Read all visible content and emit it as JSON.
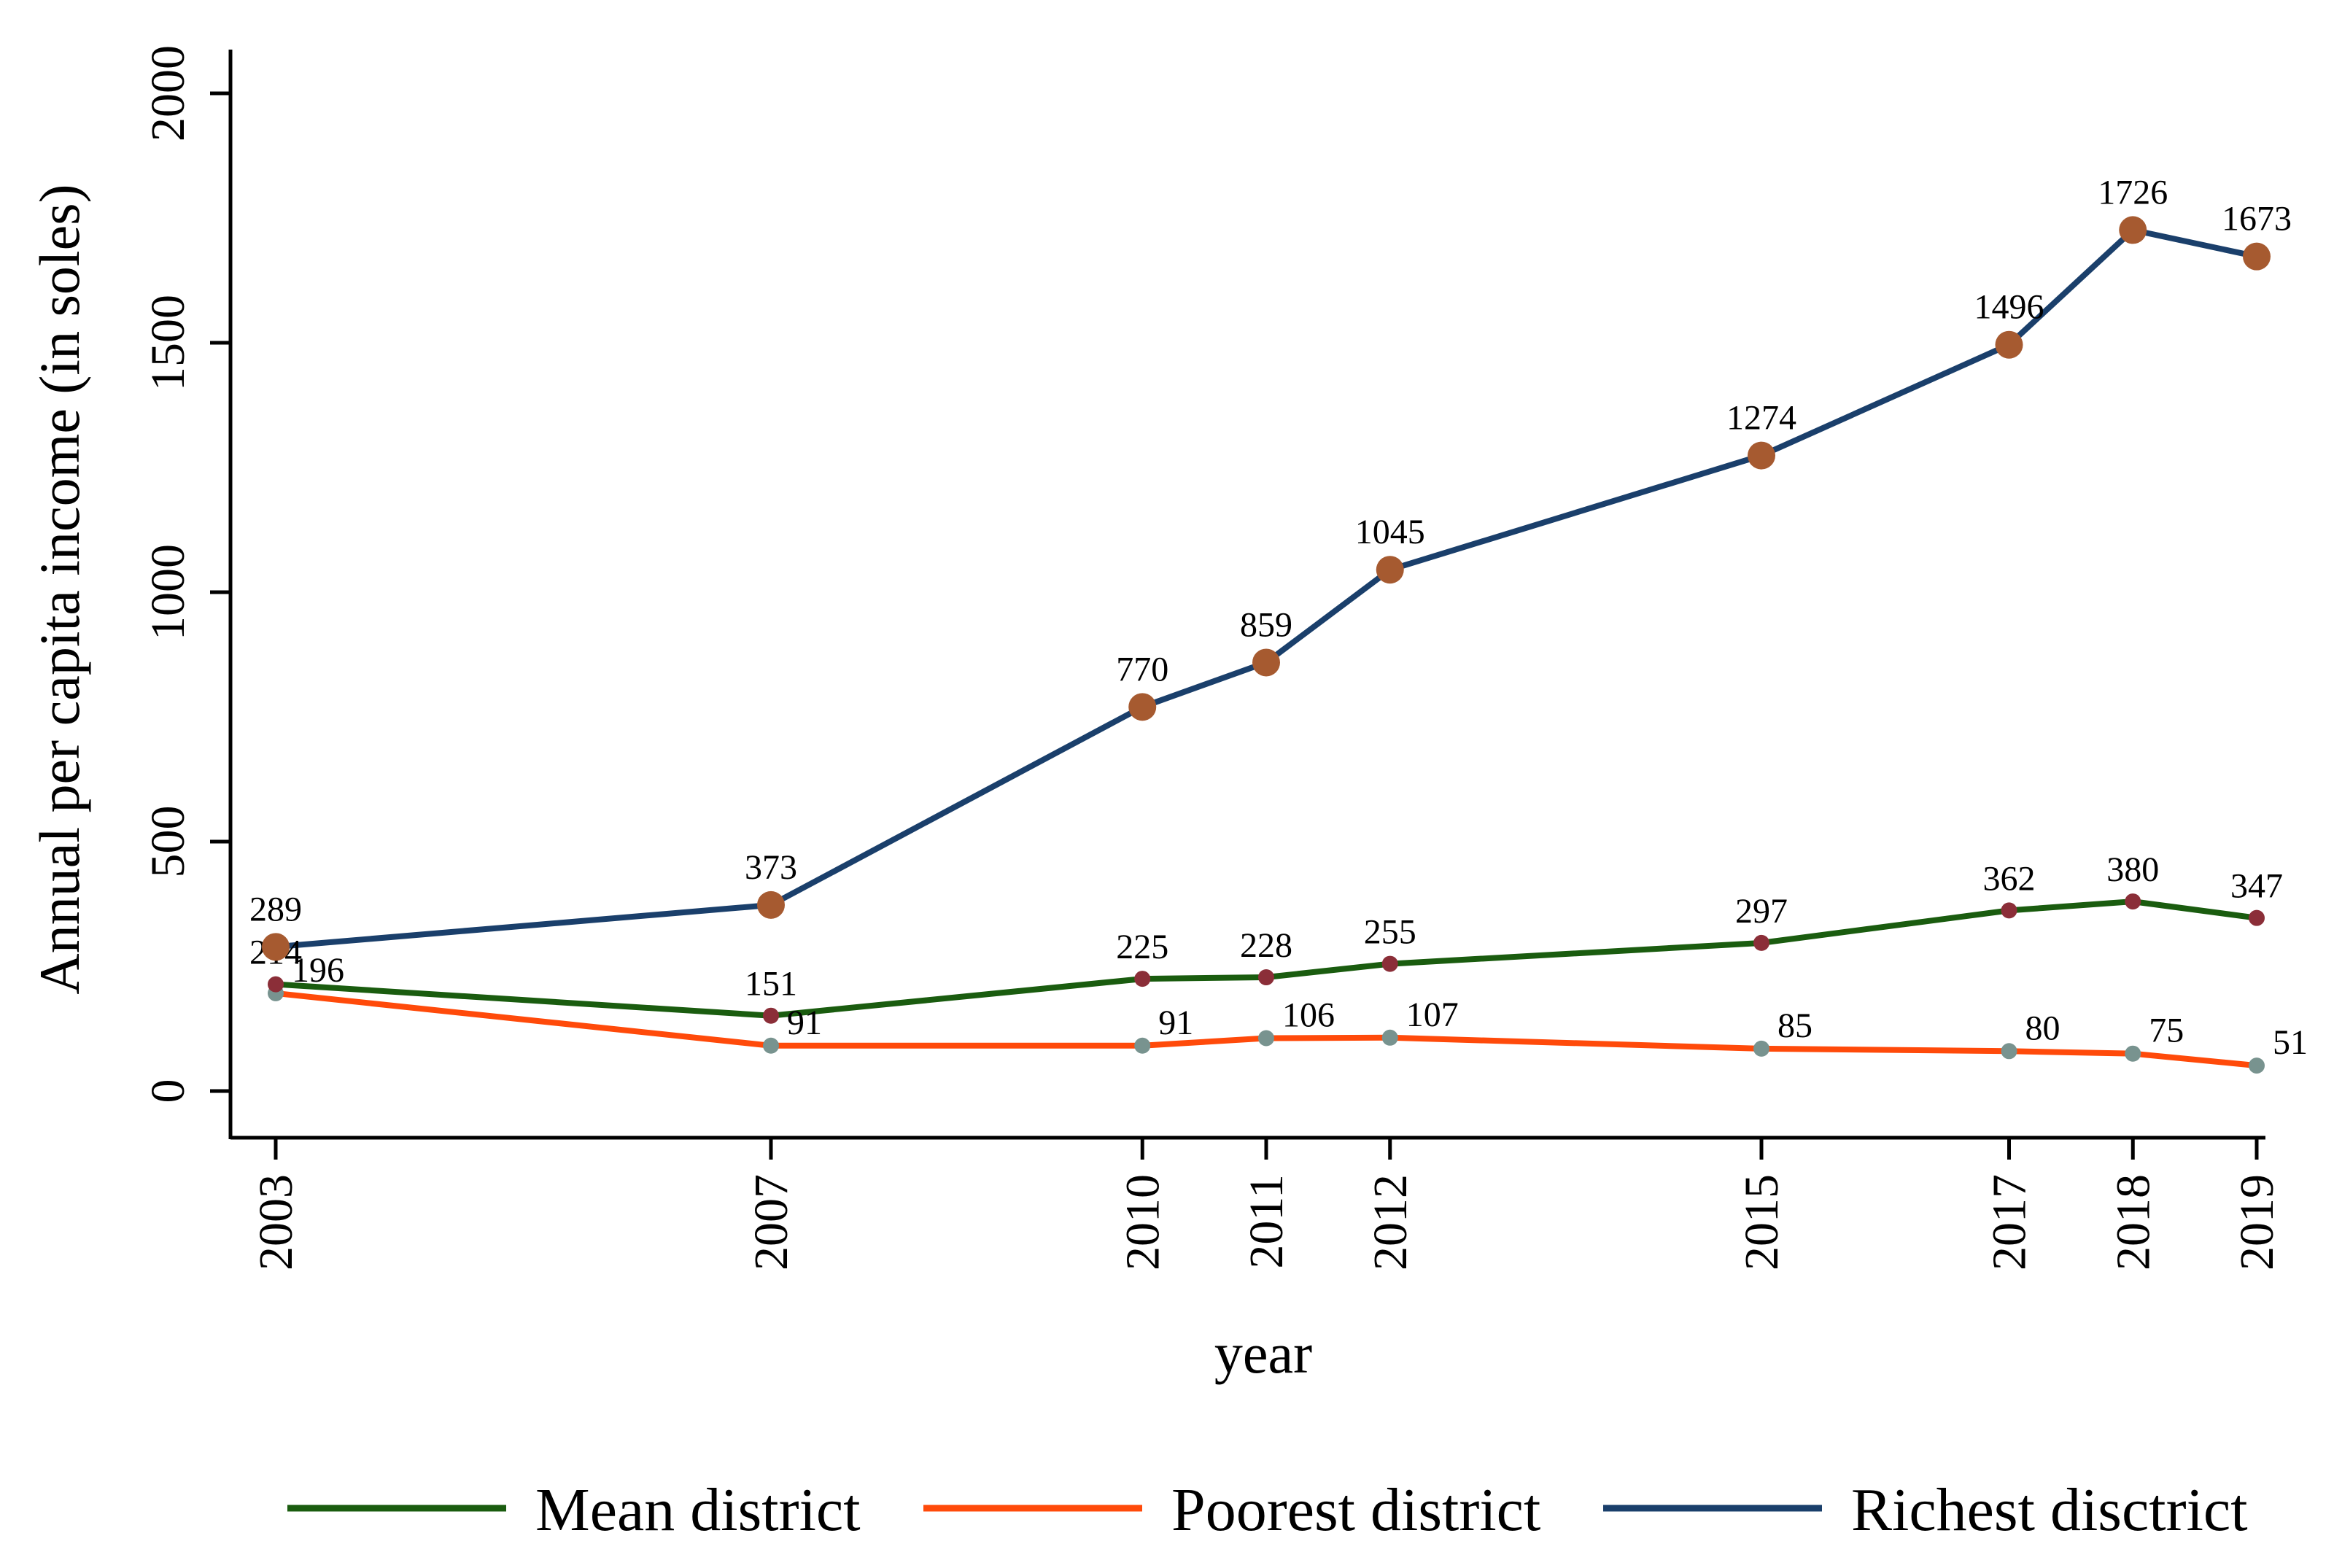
{
  "chart_data": {
    "type": "line",
    "title": "",
    "xlabel": "year",
    "ylabel": "Annual per capita income (in soles)",
    "x": [
      "2003",
      "2007",
      "2010",
      "2011",
      "2012",
      "2015",
      "2017",
      "2018",
      "2019"
    ],
    "x_values": [
      2003,
      2007,
      2010,
      2011,
      2012,
      2015,
      2017,
      2018,
      2019
    ],
    "xlim": [
      2003,
      2019
    ],
    "ylim": [
      0,
      2000
    ],
    "yticks": [
      0,
      500,
      1000,
      1500,
      2000
    ],
    "ytick_labels": [
      "0",
      "500",
      "1000",
      "1500",
      "2000"
    ],
    "grid": false,
    "legend_position": "bottom",
    "series": [
      {
        "name": "Mean district",
        "values": [
          214,
          151,
          225,
          228,
          255,
          297,
          362,
          380,
          347
        ],
        "labels": [
          "214",
          "151",
          "225",
          "228",
          "255",
          "297",
          "362",
          "380",
          "347"
        ],
        "line_color": "#1a5c0f",
        "marker_color": "#8b2e38",
        "marker": "small-dot"
      },
      {
        "name": "Poorest district",
        "values": [
          196,
          91,
          91,
          106,
          107,
          85,
          80,
          75,
          51
        ],
        "labels": [
          "196",
          "91",
          "91",
          "106",
          "107",
          "85",
          "80",
          "75",
          "51"
        ],
        "line_color": "#ff4a0a",
        "marker_color": "#78938f",
        "marker": "small-dot"
      },
      {
        "name": "Richest disctrict",
        "values": [
          289,
          373,
          770,
          859,
          1045,
          1274,
          1496,
          1726,
          1673
        ],
        "labels": [
          "289",
          "373",
          "770",
          "859",
          "1045",
          "1274",
          "1496",
          "1726",
          "1673"
        ],
        "line_color": "#1a3f6b",
        "marker_color": "#a65a30",
        "marker": "large-dot"
      }
    ]
  }
}
